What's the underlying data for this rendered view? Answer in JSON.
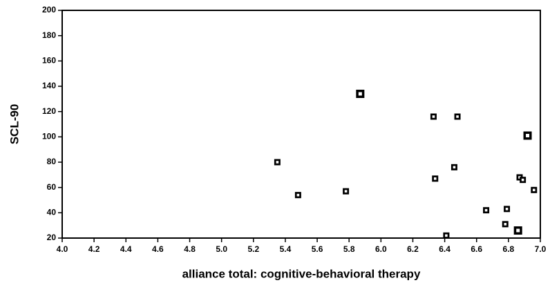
{
  "chart_data": {
    "type": "scatter",
    "xlabel": "alliance total: cognitive-behavioral therapy",
    "ylabel": "SCL-90",
    "series": [
      {
        "color": "#000000",
        "marker": "small",
        "x": [
          5.35,
          5.48,
          5.78,
          6.33,
          6.48,
          6.34,
          6.46,
          6.41,
          6.66,
          6.78,
          6.79,
          6.87,
          6.89,
          6.96
        ],
        "values": [
          80,
          54,
          57,
          116,
          116,
          67,
          76,
          22,
          42,
          31,
          43,
          68,
          66,
          58
        ]
      },
      {
        "color": "#000000",
        "marker": "large",
        "x": [
          5.87,
          6.86,
          6.92
        ],
        "values": [
          134,
          26,
          101
        ]
      }
    ],
    "xlim": [
      4.0,
      7.0
    ],
    "xticks": [
      {
        "value": 4.0,
        "label": "4.0"
      },
      {
        "value": 4.2,
        "label": "4.2"
      },
      {
        "value": 4.4,
        "label": "4.4"
      },
      {
        "value": 4.6,
        "label": "4.6"
      },
      {
        "value": 4.8,
        "label": "4.8"
      },
      {
        "value": 5.0,
        "label": "5.0"
      },
      {
        "value": 5.2,
        "label": "5.2"
      },
      {
        "value": 5.4,
        "label": "5.4"
      },
      {
        "value": 5.6,
        "label": "5.6"
      },
      {
        "value": 5.8,
        "label": "5.8"
      },
      {
        "value": 6.0,
        "label": "6.0"
      },
      {
        "value": 6.2,
        "label": "6.2"
      },
      {
        "value": 6.4,
        "label": "6.4"
      },
      {
        "value": 6.6,
        "label": "6.6"
      },
      {
        "value": 6.8,
        "label": "6.8"
      },
      {
        "value": 7.0,
        "label": "7.0"
      }
    ],
    "ylim": [
      20,
      200
    ],
    "yticks": [
      20,
      40,
      60,
      80,
      100,
      120,
      140,
      160,
      180,
      200
    ],
    "grid": false
  }
}
